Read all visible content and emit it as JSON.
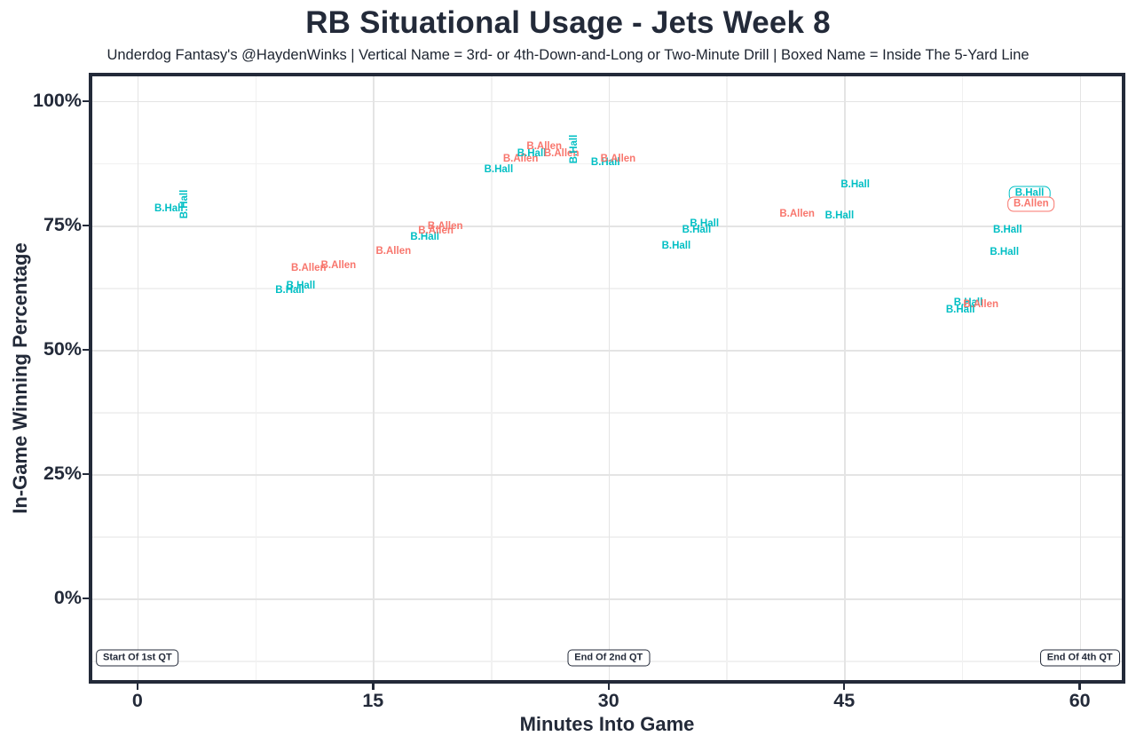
{
  "title": "RB Situational Usage - Jets Week 8",
  "subtitle": "Underdog Fantasy's @HaydenWinks | Vertical Name = 3rd- or 4th-Down-and-Long or Two-Minute Drill | Boxed Name = Inside The 5-Yard Line",
  "chart_data": {
    "type": "scatter",
    "title": "RB Situational Usage - Jets Week 8",
    "xlabel": "Minutes Into Game",
    "ylabel": "In-Game Winning Percentage",
    "xlim": [
      -3.1,
      62.9
    ],
    "ylim": [
      -17.1,
      105.7
    ],
    "x_ticks": [
      {
        "label": "0",
        "value": 0
      },
      {
        "label": "15",
        "value": 15
      },
      {
        "label": "30",
        "value": 30
      },
      {
        "label": "45",
        "value": 45
      },
      {
        "label": "60",
        "value": 60
      }
    ],
    "y_ticks": [
      {
        "label": "0%",
        "value": 0
      },
      {
        "label": "25%",
        "value": 25
      },
      {
        "label": "50%",
        "value": 50
      },
      {
        "label": "75%",
        "value": 75
      },
      {
        "label": "100%",
        "value": 100
      }
    ],
    "x_minor": [
      7.5,
      22.5,
      37.5,
      52.5
    ],
    "y_minor": [
      -12.5,
      12.5,
      37.5,
      62.5,
      87.5
    ],
    "grid": "major+minor",
    "legend": "none",
    "colors": {
      "B.Hall": "#00bfc4",
      "B.Allen": "#f8766d",
      "ink": "#232a39",
      "grid_major": "#e4e4e4",
      "grid_minor": "#f1f1f1"
    },
    "legend_meaning": {
      "vertical_name": "3rd- or 4th-Down-and-Long or Two-Minute Drill",
      "boxed_name": "Inside The 5-Yard Line"
    },
    "annotations": [
      {
        "label": "Start Of 1st QT",
        "x": 0,
        "y": -12
      },
      {
        "label": "End Of 2nd QT",
        "x": 30,
        "y": -12
      },
      {
        "label": "End Of 4th QT",
        "x": 60,
        "y": -12
      }
    ],
    "points": [
      {
        "player": "B.Hall",
        "x": 2.0,
        "y": 78.4
      },
      {
        "player": "B.Hall",
        "x": 3.0,
        "y": 79.3,
        "orient": "v"
      },
      {
        "player": "B.Hall",
        "x": 9.7,
        "y": 62.0
      },
      {
        "player": "B.Hall",
        "x": 10.4,
        "y": 62.9
      },
      {
        "player": "B.Allen",
        "x": 10.9,
        "y": 66.4
      },
      {
        "player": "B.Allen",
        "x": 12.8,
        "y": 67.0
      },
      {
        "player": "B.Allen",
        "x": 16.3,
        "y": 69.8
      },
      {
        "player": "B.Hall",
        "x": 18.3,
        "y": 72.7
      },
      {
        "player": "B.Allen",
        "x": 19.0,
        "y": 73.9
      },
      {
        "player": "B.Allen",
        "x": 19.6,
        "y": 74.8
      },
      {
        "player": "B.Hall",
        "x": 23.0,
        "y": 86.3
      },
      {
        "player": "B.Allen",
        "x": 24.4,
        "y": 88.4
      },
      {
        "player": "B.Hall",
        "x": 25.1,
        "y": 89.5
      },
      {
        "player": "B.Allen",
        "x": 25.9,
        "y": 90.9
      },
      {
        "player": "B.Allen",
        "x": 27.0,
        "y": 89.5
      },
      {
        "player": "B.Hall",
        "x": 27.8,
        "y": 90.4,
        "orient": "v"
      },
      {
        "player": "B.Hall",
        "x": 29.8,
        "y": 87.7
      },
      {
        "player": "B.Allen",
        "x": 30.6,
        "y": 88.4
      },
      {
        "player": "B.Hall",
        "x": 34.3,
        "y": 70.9
      },
      {
        "player": "B.Hall",
        "x": 35.6,
        "y": 74.1
      },
      {
        "player": "B.Hall",
        "x": 36.1,
        "y": 75.4
      },
      {
        "player": "B.Allen",
        "x": 42.0,
        "y": 77.3
      },
      {
        "player": "B.Hall",
        "x": 44.7,
        "y": 77.0
      },
      {
        "player": "B.Hall",
        "x": 45.7,
        "y": 83.2
      },
      {
        "player": "B.Hall",
        "x": 52.4,
        "y": 58.0
      },
      {
        "player": "B.Hall",
        "x": 52.9,
        "y": 59.5
      },
      {
        "player": "B.Allen",
        "x": 53.7,
        "y": 59.1
      },
      {
        "player": "B.Hall",
        "x": 55.2,
        "y": 69.6
      },
      {
        "player": "B.Hall",
        "x": 55.4,
        "y": 74.1
      },
      {
        "player": "B.Hall",
        "x": 56.8,
        "y": 81.4,
        "boxed": true
      },
      {
        "player": "B.Allen",
        "x": 56.9,
        "y": 79.3,
        "boxed": true
      }
    ]
  }
}
